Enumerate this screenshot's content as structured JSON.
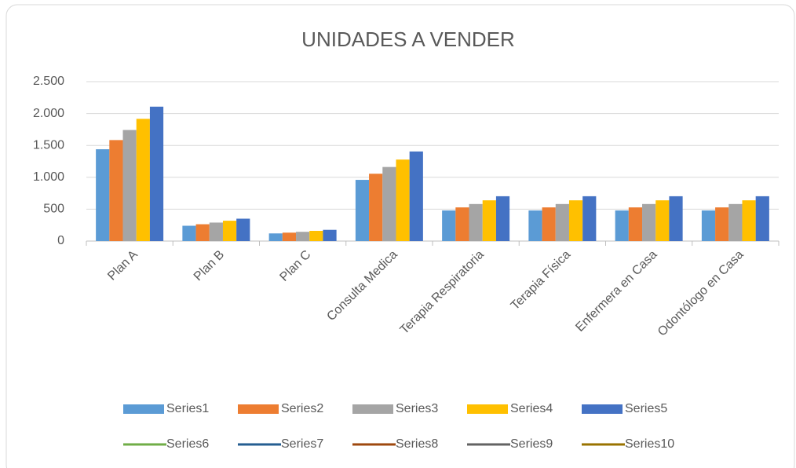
{
  "chart_data": {
    "type": "bar",
    "title": "UNIDADES A VENDER",
    "categories": [
      "Plan A",
      "Plan B",
      "Plan C",
      "Consulta Medica",
      "Terapia Respiratoria",
      "Terapia Física",
      "Enfermera en Casa",
      "Odontólogo en Casa"
    ],
    "series": [
      {
        "name": "Series1",
        "color": "#5b9bd5",
        "type": "bar",
        "values": [
          1440,
          240,
          120,
          960,
          480,
          480,
          480,
          480
        ]
      },
      {
        "name": "Series2",
        "color": "#ed7d31",
        "type": "bar",
        "values": [
          1584,
          264,
          132,
          1056,
          528,
          528,
          528,
          528
        ]
      },
      {
        "name": "Series3",
        "color": "#a5a5a5",
        "type": "bar",
        "values": [
          1742,
          290,
          145,
          1162,
          581,
          581,
          581,
          581
        ]
      },
      {
        "name": "Series4",
        "color": "#ffc000",
        "type": "bar",
        "values": [
          1917,
          319,
          160,
          1278,
          639,
          639,
          639,
          639
        ]
      },
      {
        "name": "Series5",
        "color": "#4472c4",
        "type": "bar",
        "values": [
          2108,
          351,
          176,
          1405,
          703,
          703,
          703,
          703
        ]
      },
      {
        "name": "Series6",
        "color": "#70ad47",
        "type": "line",
        "values": [
          null,
          null,
          null,
          null,
          null,
          null,
          null,
          null
        ]
      },
      {
        "name": "Series7",
        "color": "#255e91",
        "type": "line",
        "values": [
          null,
          null,
          null,
          null,
          null,
          null,
          null,
          null
        ]
      },
      {
        "name": "Series8",
        "color": "#9e480e",
        "type": "line",
        "values": [
          null,
          null,
          null,
          null,
          null,
          null,
          null,
          null
        ]
      },
      {
        "name": "Series9",
        "color": "#636363",
        "type": "line",
        "values": [
          null,
          null,
          null,
          null,
          null,
          null,
          null,
          null
        ]
      },
      {
        "name": "Series10",
        "color": "#997300",
        "type": "line",
        "values": [
          null,
          null,
          null,
          null,
          null,
          null,
          null,
          null
        ]
      }
    ],
    "ylim": [
      0,
      2500
    ],
    "yticks": [
      0,
      {
        "value": 500,
        "label": "500"
      },
      {
        "value": 1000,
        "label": "1.000"
      },
      {
        "value": 1500,
        "label": "1.500"
      },
      {
        "value": 2000,
        "label": "2.000"
      },
      {
        "value": 2500,
        "label": "2.500"
      }
    ],
    "grid": true,
    "legend": "bottom"
  }
}
